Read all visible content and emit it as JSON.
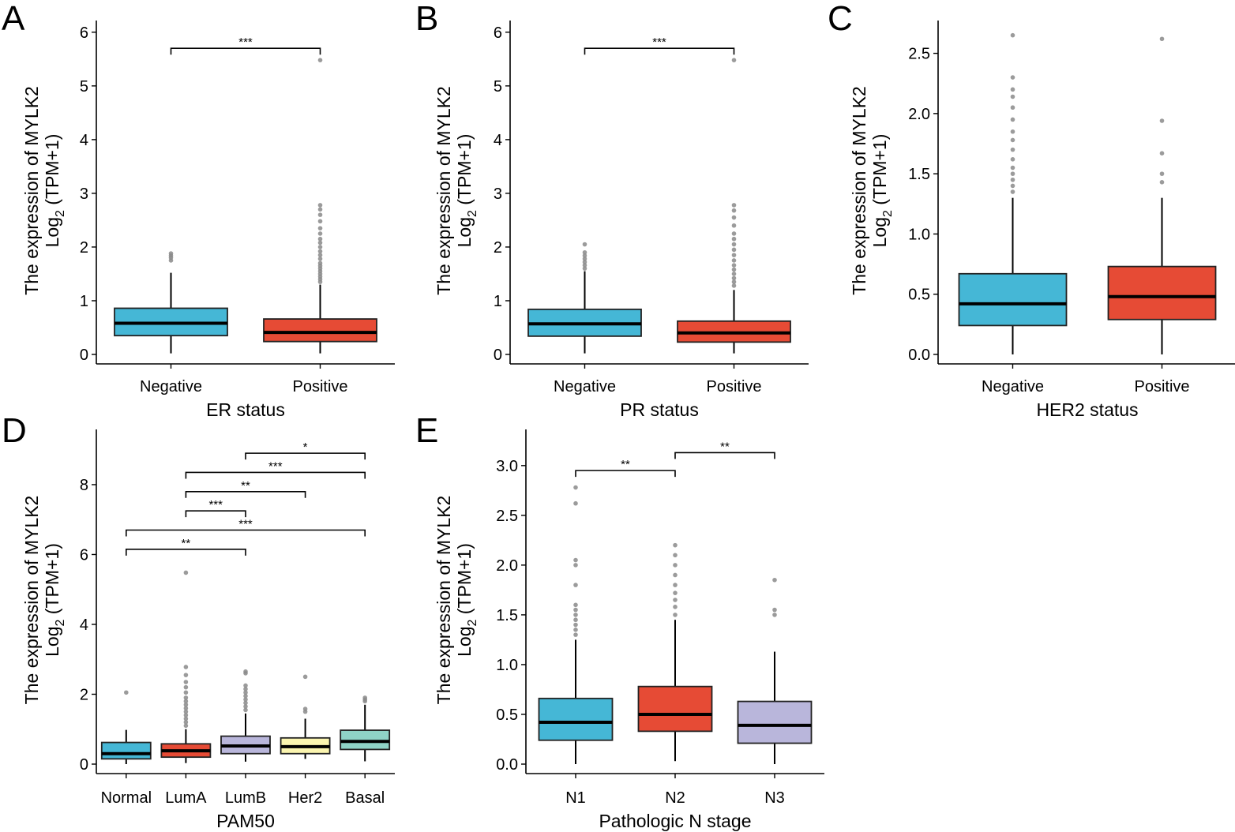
{
  "ytitle": {
    "prefix": "The expression of MYLK2",
    "log": "Log",
    "sub": "2",
    "unit": " (TPM+1)"
  },
  "chart_data": [
    {
      "type": "box",
      "panel": "A",
      "xlabel": "ER status",
      "ylim": [
        0,
        6.1
      ],
      "yticks": [
        0,
        1,
        2,
        3,
        4,
        5,
        6
      ],
      "ytick_labels": [
        "0",
        "1",
        "2",
        "3",
        "4",
        "5",
        "6"
      ],
      "categories": [
        "Negative",
        "Positive"
      ],
      "boxes": [
        {
          "name": "Negative",
          "lw": 0.02,
          "q1": 0.35,
          "median": 0.58,
          "q3": 0.86,
          "uw": 1.52,
          "color": "#45B7D6",
          "outliers": [
            1.75,
            1.8,
            1.84,
            1.88
          ]
        },
        {
          "name": "Positive",
          "lw": 0.02,
          "q1": 0.24,
          "median": 0.41,
          "q3": 0.66,
          "uw": 1.3,
          "color": "#E64B35",
          "outliers": [
            1.35,
            1.4,
            1.45,
            1.5,
            1.55,
            1.6,
            1.65,
            1.7,
            1.78,
            1.85,
            1.92,
            2.0,
            2.08,
            2.15,
            2.25,
            2.35,
            2.48,
            2.6,
            2.7,
            2.78,
            5.48
          ]
        }
      ],
      "comparisons": [
        {
          "from": 0,
          "to": 1,
          "y": 5.7,
          "label": "***"
        }
      ]
    },
    {
      "type": "box",
      "panel": "B",
      "xlabel": "PR status",
      "ylim": [
        0,
        6.1
      ],
      "yticks": [
        0,
        1,
        2,
        3,
        4,
        5,
        6
      ],
      "ytick_labels": [
        "0",
        "1",
        "2",
        "3",
        "4",
        "5",
        "6"
      ],
      "categories": [
        "Negative",
        "Positive"
      ],
      "boxes": [
        {
          "name": "Negative",
          "lw": 0.02,
          "q1": 0.34,
          "median": 0.57,
          "q3": 0.84,
          "uw": 1.55,
          "color": "#45B7D6",
          "outliers": [
            1.6,
            1.66,
            1.72,
            1.78,
            1.84,
            1.9,
            2.05
          ]
        },
        {
          "name": "Positive",
          "lw": 0.02,
          "q1": 0.23,
          "median": 0.4,
          "q3": 0.62,
          "uw": 1.2,
          "color": "#E64B35",
          "outliers": [
            1.28,
            1.35,
            1.42,
            1.5,
            1.58,
            1.66,
            1.75,
            1.85,
            1.95,
            2.05,
            2.15,
            2.25,
            2.4,
            2.55,
            2.68,
            2.78,
            5.48
          ]
        }
      ],
      "comparisons": [
        {
          "from": 0,
          "to": 1,
          "y": 5.7,
          "label": "***"
        }
      ]
    },
    {
      "type": "box",
      "panel": "C",
      "xlabel": "HER2 status",
      "ylim": [
        0,
        2.72
      ],
      "yticks": [
        0,
        0.5,
        1,
        1.5,
        2,
        2.5
      ],
      "ytick_labels": [
        "0.0",
        "0.5",
        "1.0",
        "1.5",
        "2.0",
        "2.5"
      ],
      "categories": [
        "Negative",
        "Positive"
      ],
      "boxes": [
        {
          "name": "Negative",
          "lw": 0.0,
          "q1": 0.24,
          "median": 0.42,
          "q3": 0.67,
          "uw": 1.3,
          "color": "#45B7D6",
          "outliers": [
            1.35,
            1.4,
            1.45,
            1.5,
            1.55,
            1.62,
            1.7,
            1.78,
            1.85,
            1.95,
            2.05,
            2.14,
            2.2,
            2.3,
            2.65
          ]
        },
        {
          "name": "Positive",
          "lw": 0.0,
          "q1": 0.29,
          "median": 0.48,
          "q3": 0.73,
          "uw": 1.3,
          "color": "#E64B35",
          "outliers": [
            1.43,
            1.5,
            1.67,
            1.94,
            2.62
          ]
        }
      ],
      "comparisons": []
    },
    {
      "type": "box",
      "panel": "D",
      "xlabel": "PAM50",
      "ylim": [
        0,
        9.4
      ],
      "yticks": [
        0,
        2,
        4,
        6,
        8
      ],
      "ytick_labels": [
        "0",
        "2",
        "4",
        "6",
        "8"
      ],
      "categories": [
        "Normal",
        "LumA",
        "LumB",
        "Her2",
        "Basal"
      ],
      "boxes": [
        {
          "name": "Normal",
          "lw": 0.0,
          "q1": 0.15,
          "median": 0.3,
          "q3": 0.62,
          "uw": 0.98,
          "color": "#45B7D6",
          "outliers": [
            2.05
          ]
        },
        {
          "name": "LumA",
          "lw": 0.03,
          "q1": 0.2,
          "median": 0.38,
          "q3": 0.58,
          "uw": 1.0,
          "color": "#E64B35",
          "outliers": [
            1.1,
            1.2,
            1.3,
            1.4,
            1.5,
            1.6,
            1.7,
            1.8,
            1.9,
            2.05,
            2.2,
            2.35,
            2.55,
            2.78,
            5.48
          ]
        },
        {
          "name": "LumB",
          "lw": 0.07,
          "q1": 0.3,
          "median": 0.52,
          "q3": 0.8,
          "uw": 1.45,
          "color": "#B9B6DB",
          "outliers": [
            1.55,
            1.65,
            1.75,
            1.85,
            1.95,
            2.05,
            2.15,
            2.25,
            2.6,
            2.65
          ]
        },
        {
          "name": "Her2",
          "lw": 0.15,
          "q1": 0.3,
          "median": 0.5,
          "q3": 0.75,
          "uw": 1.3,
          "color": "#FBF5B0",
          "outliers": [
            1.5,
            1.58,
            2.5
          ]
        },
        {
          "name": "Basal",
          "lw": 0.08,
          "q1": 0.42,
          "median": 0.65,
          "q3": 0.97,
          "uw": 1.7,
          "color": "#8FD3C6",
          "outliers": [
            1.8,
            1.85,
            1.9
          ]
        }
      ],
      "comparisons": [
        {
          "from": 2,
          "to": 4,
          "y": 8.9,
          "label": "*"
        },
        {
          "from": 1,
          "to": 4,
          "y": 8.35,
          "label": "***"
        },
        {
          "from": 1,
          "to": 3,
          "y": 7.8,
          "label": "**"
        },
        {
          "from": 1,
          "to": 2,
          "y": 7.25,
          "label": "***"
        },
        {
          "from": 0,
          "to": 4,
          "y": 6.7,
          "label": "***"
        },
        {
          "from": 0,
          "to": 2,
          "y": 6.15,
          "label": "**"
        }
      ]
    },
    {
      "type": "box",
      "panel": "E",
      "xlabel": "Pathologic N stage",
      "ylim": [
        0,
        3.3
      ],
      "yticks": [
        0,
        0.5,
        1,
        1.5,
        2,
        2.5,
        3
      ],
      "ytick_labels": [
        "0.0",
        "0.5",
        "1.0",
        "1.5",
        "2.0",
        "2.5",
        "3.0"
      ],
      "categories": [
        "N1",
        "N2",
        "N3"
      ],
      "boxes": [
        {
          "name": "N1",
          "lw": 0.0,
          "q1": 0.24,
          "median": 0.42,
          "q3": 0.66,
          "uw": 1.25,
          "color": "#45B7D6",
          "outliers": [
            1.3,
            1.35,
            1.4,
            1.45,
            1.5,
            1.55,
            1.6,
            1.8,
            2.0,
            2.05,
            2.62,
            2.78
          ]
        },
        {
          "name": "N2",
          "lw": 0.03,
          "q1": 0.33,
          "median": 0.5,
          "q3": 0.78,
          "uw": 1.45,
          "color": "#E64B35",
          "outliers": [
            1.5,
            1.58,
            1.65,
            1.72,
            1.8,
            1.9,
            2.0,
            2.1,
            2.2
          ]
        },
        {
          "name": "N3",
          "lw": 0.0,
          "q1": 0.21,
          "median": 0.39,
          "q3": 0.63,
          "uw": 1.13,
          "color": "#B9B6DB",
          "outliers": [
            1.5,
            1.55,
            1.85
          ]
        }
      ],
      "comparisons": [
        {
          "from": 0,
          "to": 1,
          "y": 2.95,
          "label": "**"
        },
        {
          "from": 1,
          "to": 2,
          "y": 3.13,
          "label": "**"
        }
      ]
    }
  ]
}
